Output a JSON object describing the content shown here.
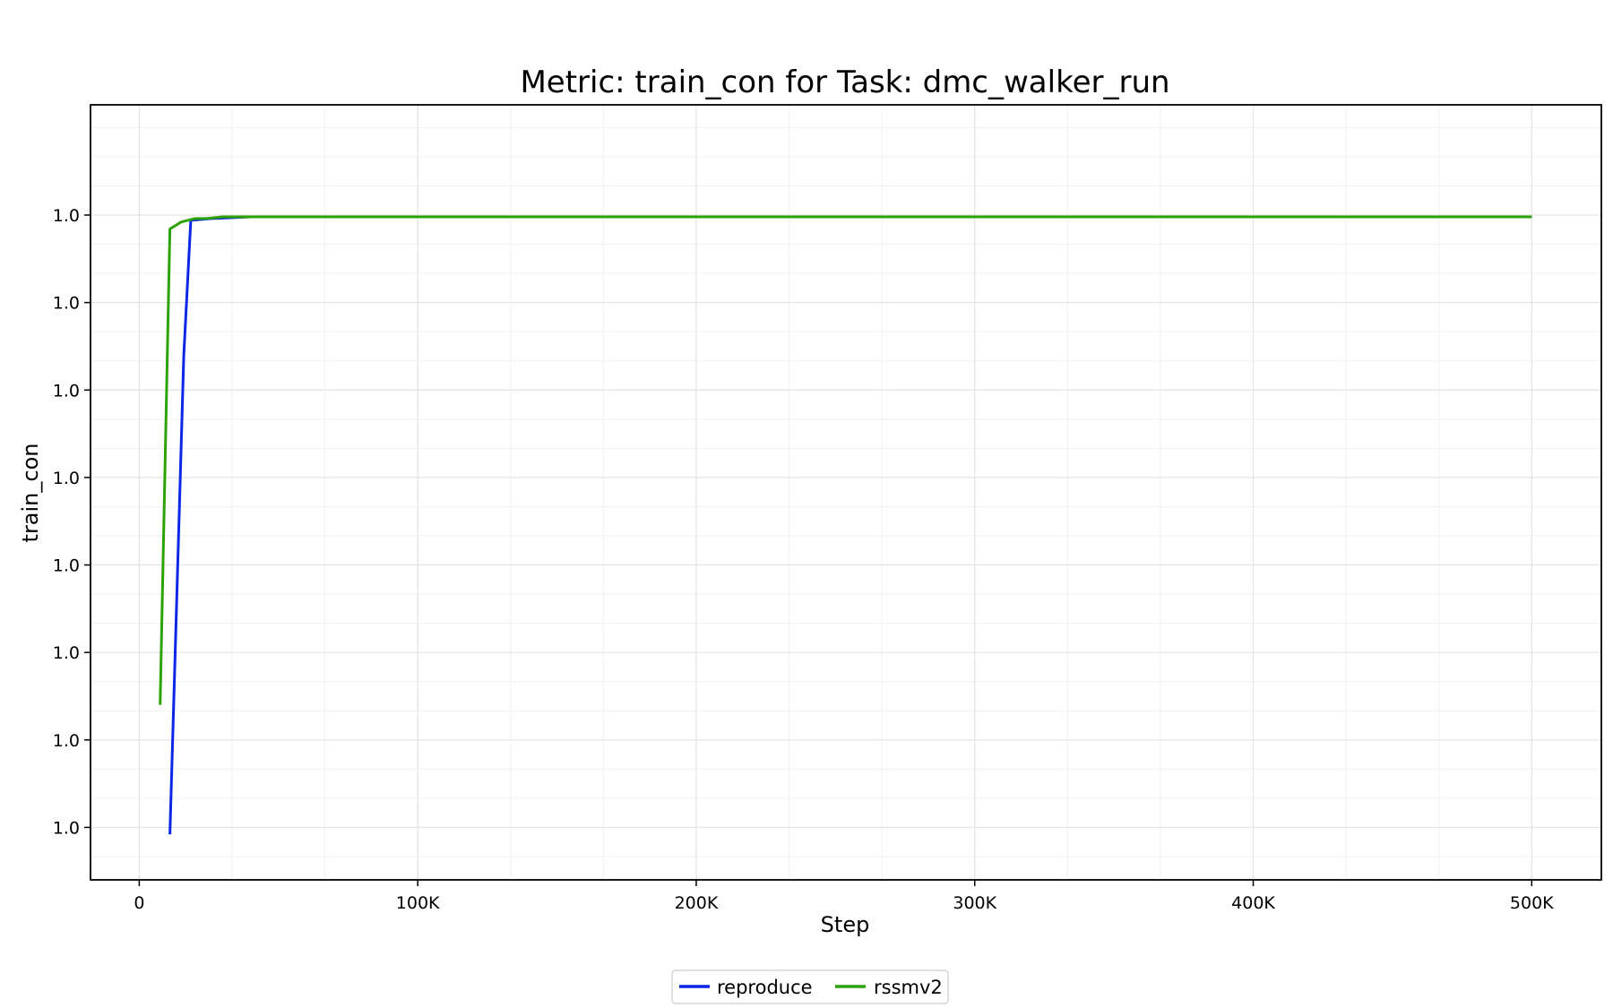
{
  "chart_data": {
    "type": "line",
    "title": "Metric: train_con for Task: dmc_walker_run",
    "xlabel": "Step",
    "ylabel": "train_con",
    "xlim": [
      -17500,
      525000
    ],
    "ylim": [
      0.999957,
      1.0000013
    ],
    "x_ticks": [
      {
        "value": 0,
        "label": "0"
      },
      {
        "value": 100000,
        "label": "100K"
      },
      {
        "value": 200000,
        "label": "200K"
      },
      {
        "value": 300000,
        "label": "300K"
      },
      {
        "value": 400000,
        "label": "400K"
      },
      {
        "value": 500000,
        "label": "500K"
      }
    ],
    "y_ticks": [
      {
        "value": 0.99996,
        "label": "1.0"
      },
      {
        "value": 0.999965,
        "label": "1.0"
      },
      {
        "value": 0.99997,
        "label": "1.0"
      },
      {
        "value": 0.999975,
        "label": "1.0"
      },
      {
        "value": 0.99998,
        "label": "1.0"
      },
      {
        "value": 0.999985,
        "label": "1.0"
      },
      {
        "value": 0.99999,
        "label": "1.0"
      },
      {
        "value": 0.999995,
        "label": "1.0"
      }
    ],
    "grid": true,
    "legend_position": "bottom-center",
    "series": [
      {
        "name": "reproduce",
        "color": "#0a27e6",
        "x": [
          11000,
          14000,
          16000,
          18500,
          26000,
          40000,
          100000,
          200000,
          300000,
          400000,
          500000
        ],
        "y": [
          0.9999596,
          0.999976,
          0.999987,
          0.9999947,
          0.9999948,
          0.9999949,
          0.9999949,
          0.9999949,
          0.9999949,
          0.9999949,
          0.9999949
        ]
      },
      {
        "name": "rssmv2",
        "color": "#2ca302",
        "x": [
          7500,
          11000,
          15000,
          20000,
          24000,
          30000,
          50000,
          100000,
          200000,
          300000,
          400000,
          500000
        ],
        "y": [
          0.999967,
          0.9999942,
          0.9999946,
          0.9999948,
          0.9999948,
          0.9999949,
          0.9999949,
          0.9999949,
          0.9999949,
          0.9999949,
          0.9999949,
          0.9999949
        ]
      }
    ]
  }
}
